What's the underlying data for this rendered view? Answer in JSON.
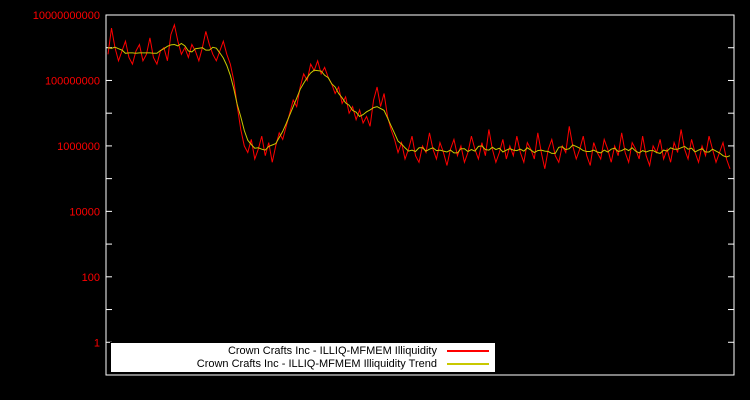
{
  "colors": {
    "background": "#000000",
    "plot_border": "#ffffff",
    "tick_label": "#ff0000",
    "series_main": "#ff0000",
    "series_trend": "#c8c800"
  },
  "chart_data": {
    "type": "line",
    "title": "",
    "xlabel": "",
    "ylabel": "",
    "yscale": "log",
    "ylim": [
      0.1,
      10000000000
    ],
    "yticks": [
      "1",
      "100",
      "10000",
      "1000000",
      "100000000",
      "10000000000"
    ],
    "ytick_exponents": [
      0,
      2,
      4,
      6,
      8,
      10
    ],
    "grid": false,
    "legend_position": "bottom-center-inside",
    "series": [
      {
        "name": "Crown Crafts Inc - ILLIQ-MFMEM Illiquidity",
        "color": "#ff0000",
        "values_log10": [
          8.8,
          9.6,
          9.0,
          8.6,
          8.9,
          9.2,
          8.7,
          8.5,
          8.9,
          9.1,
          8.6,
          8.8,
          9.3,
          8.7,
          8.5,
          8.9,
          9.0,
          8.6,
          9.4,
          9.7,
          9.2,
          8.8,
          9.0,
          8.7,
          9.1,
          8.9,
          8.6,
          9.0,
          9.5,
          9.1,
          8.8,
          8.6,
          8.9,
          9.2,
          8.8,
          8.5,
          8.0,
          7.2,
          6.5,
          6.0,
          5.8,
          6.2,
          5.6,
          5.9,
          6.3,
          5.7,
          6.1,
          5.5,
          6.0,
          6.4,
          6.2,
          6.6,
          7.0,
          7.4,
          7.2,
          7.8,
          8.2,
          8.0,
          8.5,
          8.3,
          8.6,
          8.2,
          8.4,
          8.1,
          7.9,
          7.6,
          7.8,
          7.3,
          7.5,
          7.0,
          7.2,
          6.8,
          7.1,
          6.7,
          6.9,
          6.6,
          7.4,
          7.8,
          7.2,
          7.6,
          6.9,
          6.5,
          6.2,
          5.8,
          6.1,
          5.6,
          5.9,
          6.3,
          5.7,
          5.5,
          6.0,
          5.8,
          6.4,
          5.9,
          5.6,
          6.1,
          5.8,
          5.4,
          5.9,
          6.2,
          5.7,
          6.0,
          5.5,
          5.8,
          6.3,
          5.9,
          5.6,
          6.1,
          5.7,
          6.5,
          5.9,
          5.5,
          5.8,
          6.2,
          5.6,
          6.0,
          5.7,
          6.3,
          5.8,
          5.5,
          6.1,
          5.9,
          5.6,
          6.4,
          5.8,
          5.3,
          5.9,
          6.2,
          5.7,
          5.5,
          6.0,
          5.8,
          6.6,
          6.0,
          5.6,
          5.9,
          6.3,
          5.7,
          5.4,
          6.1,
          5.8,
          5.6,
          6.2,
          5.9,
          5.5,
          6.0,
          5.7,
          6.4,
          5.8,
          5.5,
          6.1,
          5.9,
          5.6,
          6.3,
          5.7,
          5.4,
          6.0,
          5.8,
          6.2,
          5.6,
          5.9,
          5.5,
          6.1,
          5.8,
          6.5,
          5.9,
          5.6,
          6.2,
          5.8,
          5.5,
          6.0,
          5.7,
          6.3,
          5.9,
          5.5,
          5.8,
          6.1,
          5.6,
          5.3
        ]
      },
      {
        "name": "Crown Crafts Inc - ILLIQ-MFMEM Illiquidity Trend",
        "color": "#c8c800",
        "derived": "centered moving average (window 7) of series 0, log space"
      }
    ]
  }
}
